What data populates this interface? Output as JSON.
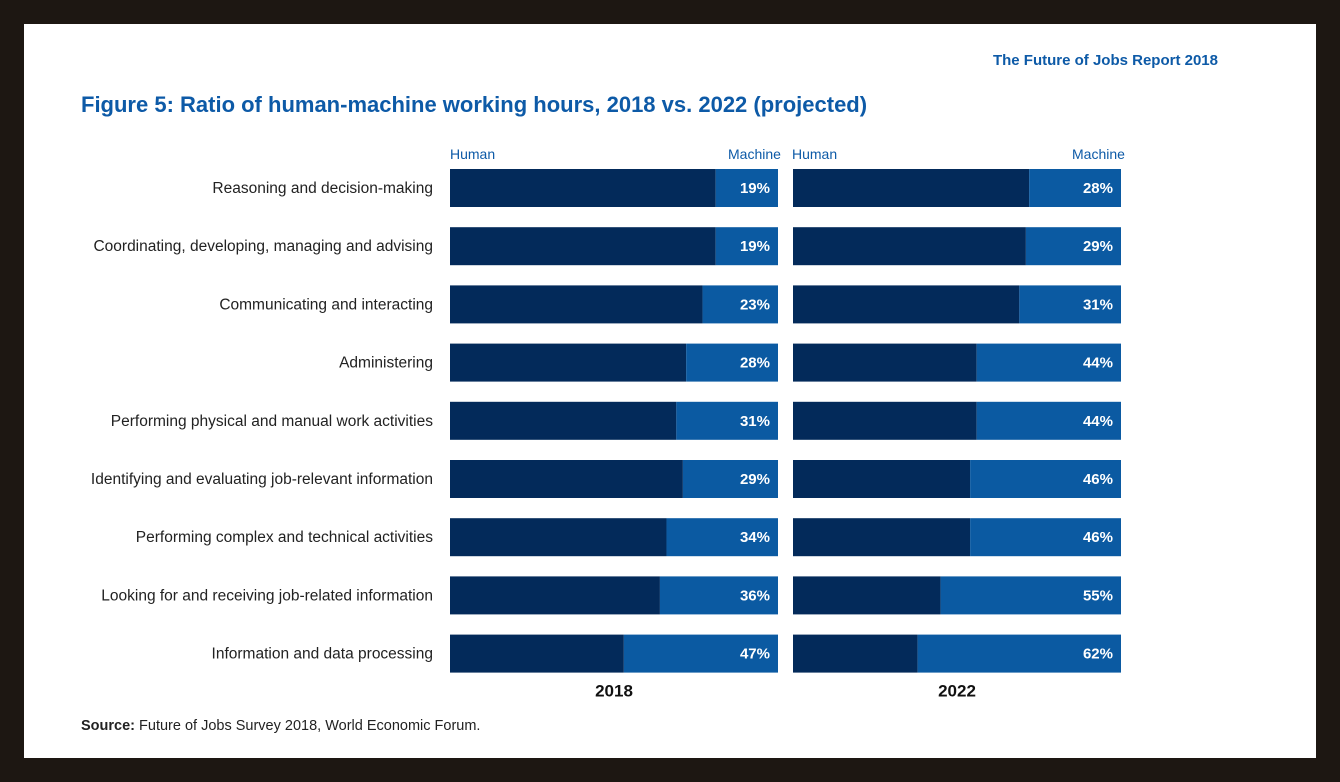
{
  "header": {
    "report_title": "The Future of Jobs Report 2018",
    "figure_title": "Figure 5: Ratio of human-machine working hours, 2018 vs. 2022 (projected)"
  },
  "legend": {
    "human": "Human",
    "machine": "Machine"
  },
  "source": {
    "label": "Source:",
    "text": "Future of Jobs Survey 2018, World Economic Forum."
  },
  "colors": {
    "human": "#032a5a",
    "machine": "#0b5aa2"
  },
  "chart_data": {
    "type": "bar",
    "stacked": true,
    "orientation": "horizontal",
    "unit": "%",
    "categories": [
      "Reasoning and decision-making",
      "Coordinating, developing, managing and advising",
      "Communicating and interacting",
      "Administering",
      "Performing physical and manual work activities",
      "Identifying and evaluating job-relevant information",
      "Performing complex and technical activities",
      "Looking for and receiving job-related information",
      "Information and data processing"
    ],
    "panels": [
      {
        "year": "2018",
        "series": [
          {
            "name": "Human",
            "values": [
              81,
              81,
              77,
              72,
              69,
              71,
              66,
              64,
              53
            ]
          },
          {
            "name": "Machine",
            "values": [
              19,
              19,
              23,
              28,
              31,
              29,
              34,
              36,
              47
            ]
          }
        ]
      },
      {
        "year": "2022",
        "series": [
          {
            "name": "Human",
            "values": [
              72,
              71,
              69,
              56,
              56,
              54,
              54,
              45,
              38
            ]
          },
          {
            "name": "Machine",
            "values": [
              28,
              29,
              31,
              44,
              44,
              46,
              46,
              55,
              62
            ]
          }
        ]
      }
    ]
  }
}
